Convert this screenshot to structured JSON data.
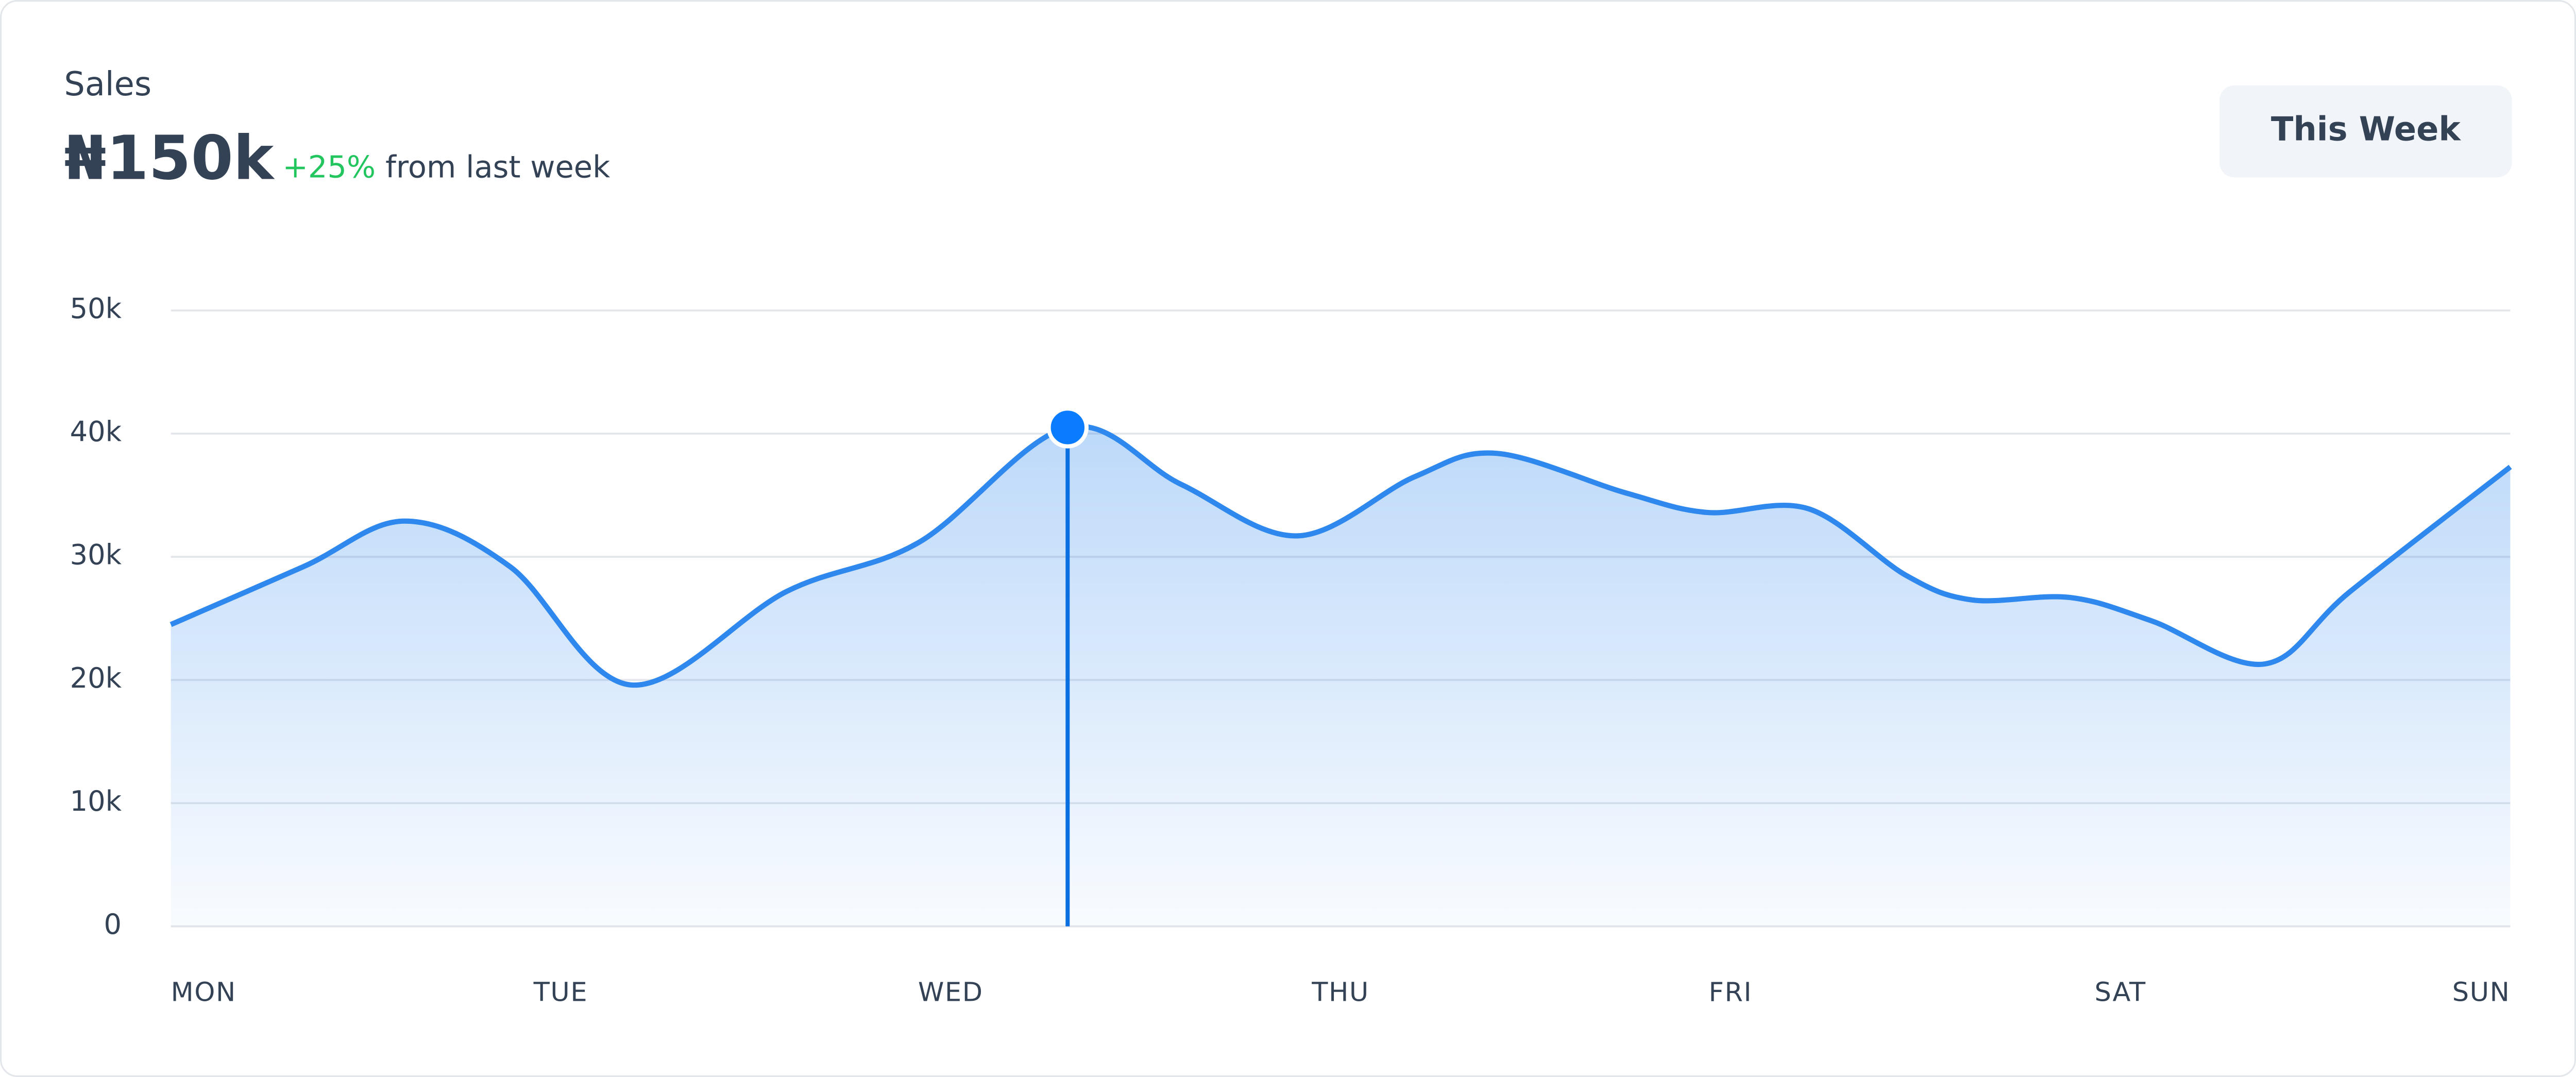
{
  "header": {
    "title": "Sales",
    "total": "₦150k",
    "change": "+25%",
    "change_note": "from last week",
    "period_button": "This Week"
  },
  "chart_data": {
    "type": "line",
    "x": [
      0,
      0.34,
      0.6,
      0.87,
      1.18,
      1.58,
      1.92,
      2.3,
      2.59,
      2.89,
      3.19,
      3.4,
      3.73,
      3.94,
      4.2,
      4.45,
      4.62,
      4.87,
      5.08,
      5.37,
      5.59,
      6
    ],
    "series": [
      {
        "color": "#2f88ee",
        "values": [
          24500,
          29200,
          32900,
          29200,
          19600,
          27200,
          31200,
          40500,
          35900,
          31700,
          36500,
          38400,
          35200,
          33600,
          33900,
          28500,
          26500,
          26700,
          24800,
          21300,
          27200,
          37300
        ]
      }
    ],
    "highlight_index": 7,
    "xlim": [
      0,
      6
    ],
    "xticks": [
      {
        "value": 0,
        "label": "MON"
      },
      {
        "value": 1,
        "label": "TUE"
      },
      {
        "value": 2,
        "label": "WED"
      },
      {
        "value": 3,
        "label": "THU"
      },
      {
        "value": 4,
        "label": "FRI"
      },
      {
        "value": 5,
        "label": "SAT"
      },
      {
        "value": 6,
        "label": "SUN"
      }
    ],
    "ylim": [
      0,
      50000
    ],
    "yticks": [
      0,
      {
        "value": 10000,
        "label": "10k"
      },
      {
        "value": 20000,
        "label": "20k"
      },
      {
        "value": 30000,
        "label": "30k"
      },
      {
        "value": 40000,
        "label": "40k"
      },
      {
        "value": 50000,
        "label": "50k"
      }
    ],
    "grid": true,
    "area": true
  }
}
